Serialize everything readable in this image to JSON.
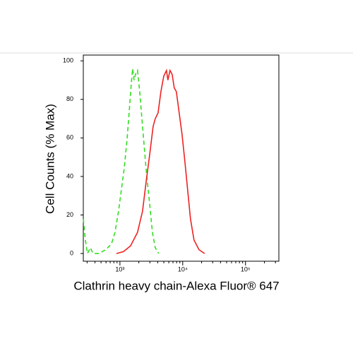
{
  "chart_data": {
    "type": "line",
    "xlabel": "Clathrin heavy chain-Alexa Fluor® 647",
    "ylabel": "Cell Counts (% Max)",
    "xscale": "log",
    "xlim": [
      261,
      340000
    ],
    "ylim": [
      -4,
      103
    ],
    "xticks": [
      {
        "value": 1000,
        "label": "10³"
      },
      {
        "value": 10000,
        "label": "10⁴"
      },
      {
        "value": 100000,
        "label": "10⁵"
      }
    ],
    "xminorticks": [
      300,
      400,
      500,
      600,
      700,
      800,
      900,
      2000,
      3000,
      4000,
      5000,
      6000,
      7000,
      8000,
      9000,
      20000,
      30000,
      40000,
      50000,
      60000,
      70000,
      80000,
      90000,
      200000,
      300000
    ],
    "yticks": [
      0,
      20,
      40,
      60,
      80,
      100
    ],
    "series": [
      {
        "color": "#33dd22",
        "dash": true,
        "x": [
          261,
          281,
          304,
          337,
          374,
          460,
          596,
          733,
          834,
          950,
          1053,
          1168,
          1295,
          1400,
          1513,
          1593,
          1678,
          1767,
          1909,
          2064,
          2290,
          2608,
          2967,
          3289,
          3648,
          4150
        ],
        "values": [
          18,
          7,
          0,
          3,
          0,
          0,
          2,
          5,
          11,
          22,
          33,
          44,
          59,
          73,
          88,
          96,
          90,
          93,
          95,
          84,
          66,
          44,
          26,
          11,
          3,
          0
        ]
      },
      {
        "color": "#ee2222",
        "dash": false,
        "x": [
          879,
          1138,
          1474,
          1909,
          2290,
          2608,
          2967,
          3375,
          3648,
          4046,
          4487,
          4976,
          5518,
          5811,
          6281,
          6781,
          7331,
          7925,
          8788,
          9746,
          10808,
          11986,
          13292,
          15136,
          18138,
          22284
        ],
        "values": [
          0,
          1,
          4,
          11,
          22,
          37,
          51,
          66,
          70,
          73,
          84,
          92,
          95,
          90,
          95,
          93,
          86,
          84,
          73,
          62,
          48,
          33,
          18,
          7,
          2,
          0
        ]
      }
    ]
  }
}
